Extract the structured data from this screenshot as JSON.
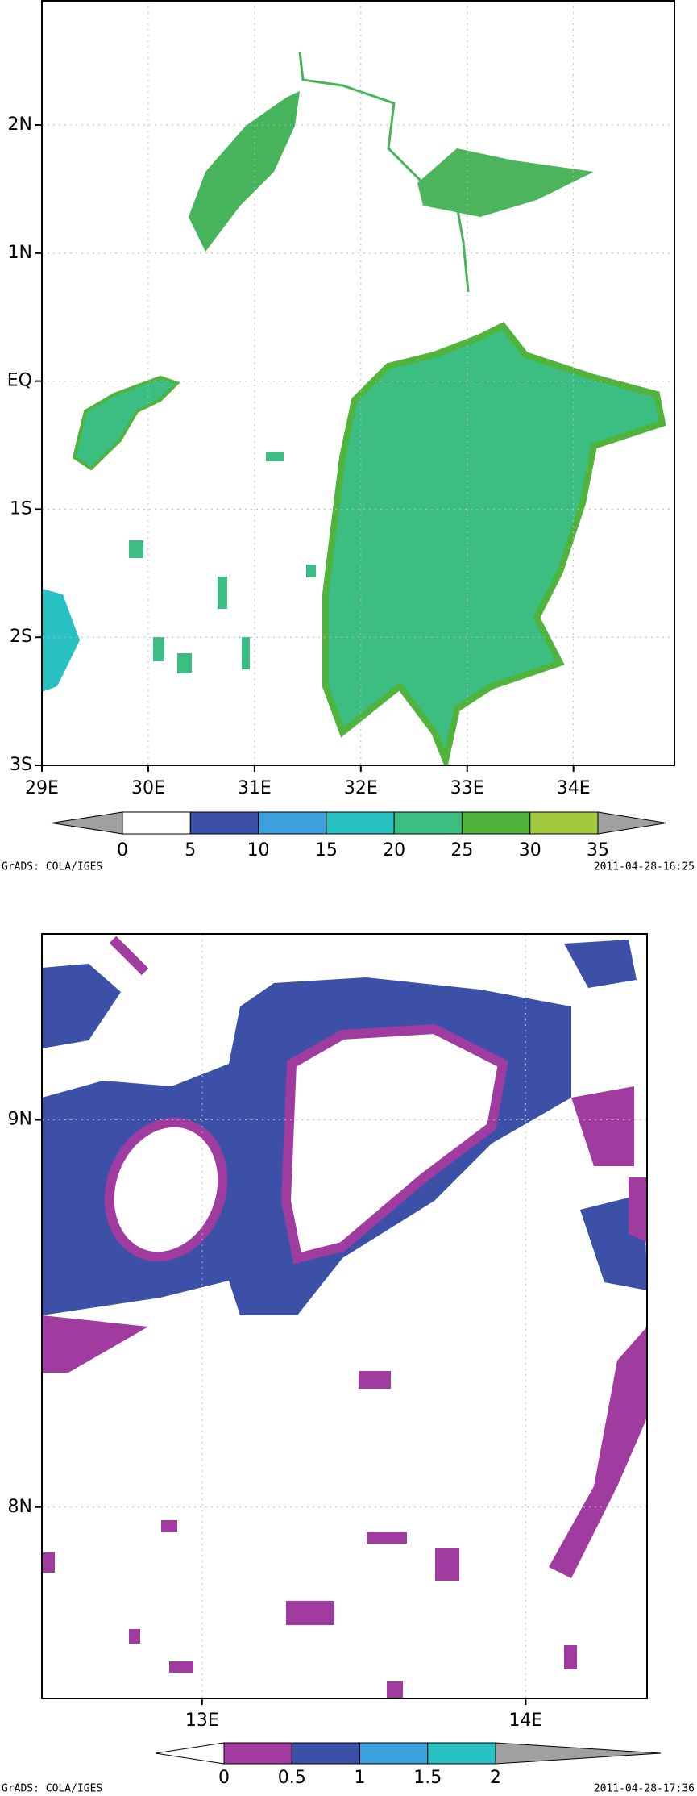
{
  "maps": [
    {
      "xlim": [
        29,
        34.95
      ],
      "ylim": [
        -3,
        2.97
      ],
      "xticks": [
        {
          "value": 29,
          "label": "29E"
        },
        {
          "value": 30,
          "label": "30E"
        },
        {
          "value": 31,
          "label": "31E"
        },
        {
          "value": 32,
          "label": "32E"
        },
        {
          "value": 33,
          "label": "33E"
        },
        {
          "value": 34,
          "label": "34E"
        }
      ],
      "yticks": [
        {
          "value": 2,
          "label": "2N"
        },
        {
          "value": 1,
          "label": "1N"
        },
        {
          "value": 0,
          "label": "EQ"
        },
        {
          "value": -1,
          "label": "1S"
        },
        {
          "value": -2,
          "label": "2S"
        },
        {
          "value": -3,
          "label": "3S"
        }
      ],
      "colorbar": {
        "levels": [
          0,
          5,
          10,
          15,
          20,
          25,
          30,
          35
        ],
        "colors": [
          "#ffffff",
          "#3c50a8",
          "#3ca0dc",
          "#28c0c0",
          "#3cbe82",
          "#50b43c",
          "#a0c83c"
        ],
        "under_color": "#a0a0a0",
        "over_color": "#a0a0a0"
      },
      "footer_left": "GrADS: COLA/IGES",
      "footer_right": "2011-04-28-16:25"
    },
    {
      "xlim": [
        12.505,
        14.375
      ],
      "ylim": [
        7.506,
        9.48
      ],
      "xticks": [
        {
          "value": 13,
          "label": "13E"
        },
        {
          "value": 14,
          "label": "14E"
        }
      ],
      "yticks": [
        {
          "value": 9,
          "label": "9N"
        },
        {
          "value": 8,
          "label": "8N"
        }
      ],
      "colorbar": {
        "levels": [
          0,
          0.5,
          1,
          1.5,
          2
        ],
        "colors": [
          "#a03ca0",
          "#3c50a8",
          "#3ca0dc",
          "#28c0c0"
        ],
        "under_color": "#ffffff",
        "over_color": "#a0a0a0"
      },
      "footer_left": "GrADS: COLA/IGES",
      "footer_right": "2011-04-28-17:36"
    }
  ]
}
